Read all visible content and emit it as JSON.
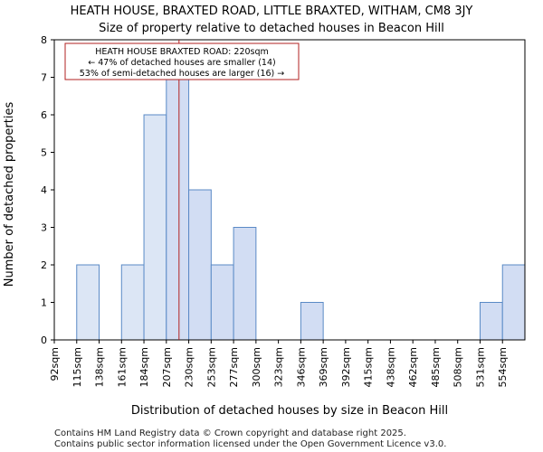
{
  "chart_data": {
    "type": "bar",
    "title": "HEATH HOUSE, BRAXTED ROAD, LITTLE BRAXTED, WITHAM, CM8 3JY",
    "subtitle": "Size of property relative to detached houses in Beacon Hill",
    "xlabel": "Distribution of detached houses by size in Beacon Hill",
    "ylabel": "Number of detached properties",
    "categories": [
      "92sqm",
      "115sqm",
      "138sqm",
      "161sqm",
      "184sqm",
      "207sqm",
      "230sqm",
      "253sqm",
      "277sqm",
      "300sqm",
      "323sqm",
      "346sqm",
      "369sqm",
      "392sqm",
      "415sqm",
      "438sqm",
      "462sqm",
      "485sqm",
      "508sqm",
      "531sqm",
      "554sqm"
    ],
    "values": [
      0,
      2,
      0,
      2,
      6,
      7,
      4,
      2,
      3,
      0,
      0,
      1,
      0,
      0,
      0,
      0,
      0,
      0,
      0,
      1,
      2
    ],
    "highlight_from_index": 5,
    "ylim": [
      0,
      8
    ],
    "yticks": [
      0,
      1,
      2,
      3,
      4,
      5,
      6,
      7,
      8
    ],
    "marker_value_sqm": 220,
    "annotation": {
      "line1": "HEATH HOUSE BRAXTED ROAD: 220sqm",
      "line2": "← 47% of detached houses are smaller (14)",
      "line3": "53% of semi-detached houses are larger (16) →"
    },
    "colors": {
      "bar_fill_left": "#dce6f5",
      "bar_fill_right": "#d2ddf3",
      "bar_stroke": "#5a8ac6",
      "marker": "#b22222",
      "annotation_border": "#b22222"
    }
  },
  "footer": {
    "line1": "Contains HM Land Registry data © Crown copyright and database right 2025.",
    "line2": "Contains public sector information licensed under the Open Government Licence v3.0."
  }
}
